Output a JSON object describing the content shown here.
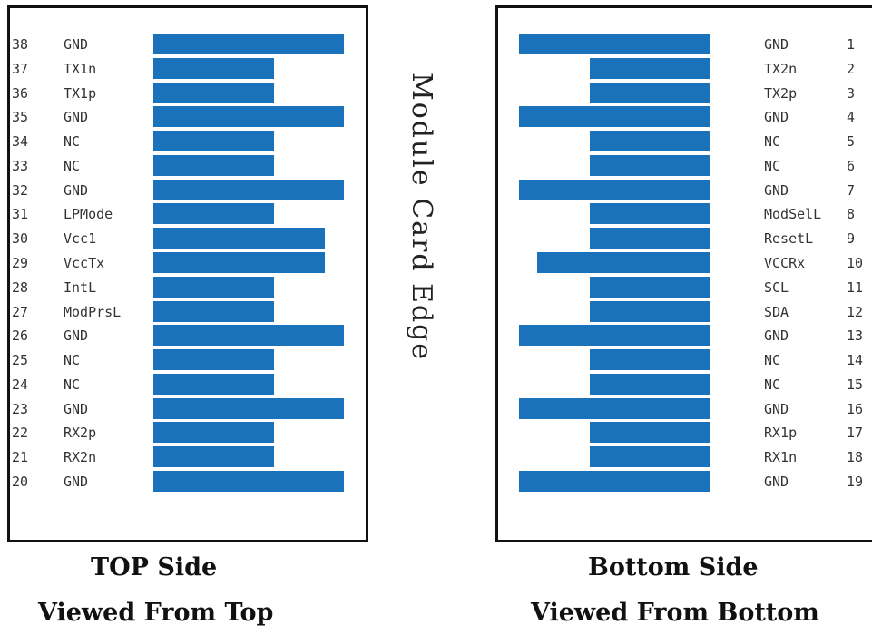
{
  "title": "Module Card Edge",
  "colors": {
    "pad": "#1a72bb",
    "border": "#111111"
  },
  "top_side": {
    "caption": "TOP Side",
    "subcaption": "Viewed From Top",
    "pins": [
      {
        "num": "38",
        "label": "GND",
        "pad": "long"
      },
      {
        "num": "37",
        "label": "TX1n",
        "pad": "short"
      },
      {
        "num": "36",
        "label": "TX1p",
        "pad": "short"
      },
      {
        "num": "35",
        "label": "GND",
        "pad": "long"
      },
      {
        "num": "34",
        "label": "NC",
        "pad": "short"
      },
      {
        "num": "33",
        "label": "NC",
        "pad": "short"
      },
      {
        "num": "32",
        "label": "GND",
        "pad": "long"
      },
      {
        "num": "31",
        "label": "LPMode",
        "pad": "short"
      },
      {
        "num": "30",
        "label": "Vcc1",
        "pad": "medium"
      },
      {
        "num": "29",
        "label": "VccTx",
        "pad": "medium"
      },
      {
        "num": "28",
        "label": "IntL",
        "pad": "short"
      },
      {
        "num": "27",
        "label": "ModPrsL",
        "pad": "short"
      },
      {
        "num": "26",
        "label": "GND",
        "pad": "long"
      },
      {
        "num": "25",
        "label": "NC",
        "pad": "short"
      },
      {
        "num": "24",
        "label": "NC",
        "pad": "short"
      },
      {
        "num": "23",
        "label": "GND",
        "pad": "long"
      },
      {
        "num": "22",
        "label": "RX2p",
        "pad": "short"
      },
      {
        "num": "21",
        "label": "RX2n",
        "pad": "short"
      },
      {
        "num": "20",
        "label": "GND",
        "pad": "long"
      }
    ]
  },
  "bottom_side": {
    "caption": "Bottom Side",
    "subcaption": "Viewed From Bottom",
    "pins": [
      {
        "num": "1",
        "label": "GND",
        "pad": "long"
      },
      {
        "num": "2",
        "label": "TX2n",
        "pad": "short"
      },
      {
        "num": "3",
        "label": "TX2p",
        "pad": "short"
      },
      {
        "num": "4",
        "label": "GND",
        "pad": "long"
      },
      {
        "num": "5",
        "label": "NC",
        "pad": "short"
      },
      {
        "num": "6",
        "label": "NC",
        "pad": "short"
      },
      {
        "num": "7",
        "label": "GND",
        "pad": "long"
      },
      {
        "num": "8",
        "label": "ModSelL",
        "pad": "short"
      },
      {
        "num": "9",
        "label": "ResetL",
        "pad": "short"
      },
      {
        "num": "10",
        "label": "VCCRx",
        "pad": "medium"
      },
      {
        "num": "11",
        "label": "SCL",
        "pad": "short"
      },
      {
        "num": "12",
        "label": "SDA",
        "pad": "short"
      },
      {
        "num": "13",
        "label": "GND",
        "pad": "long"
      },
      {
        "num": "14",
        "label": "NC",
        "pad": "short"
      },
      {
        "num": "15",
        "label": "NC",
        "pad": "short"
      },
      {
        "num": "16",
        "label": "GND",
        "pad": "long"
      },
      {
        "num": "17",
        "label": "RX1p",
        "pad": "short"
      },
      {
        "num": "18",
        "label": "RX1n",
        "pad": "short"
      },
      {
        "num": "19",
        "label": "GND",
        "pad": "long"
      }
    ]
  }
}
